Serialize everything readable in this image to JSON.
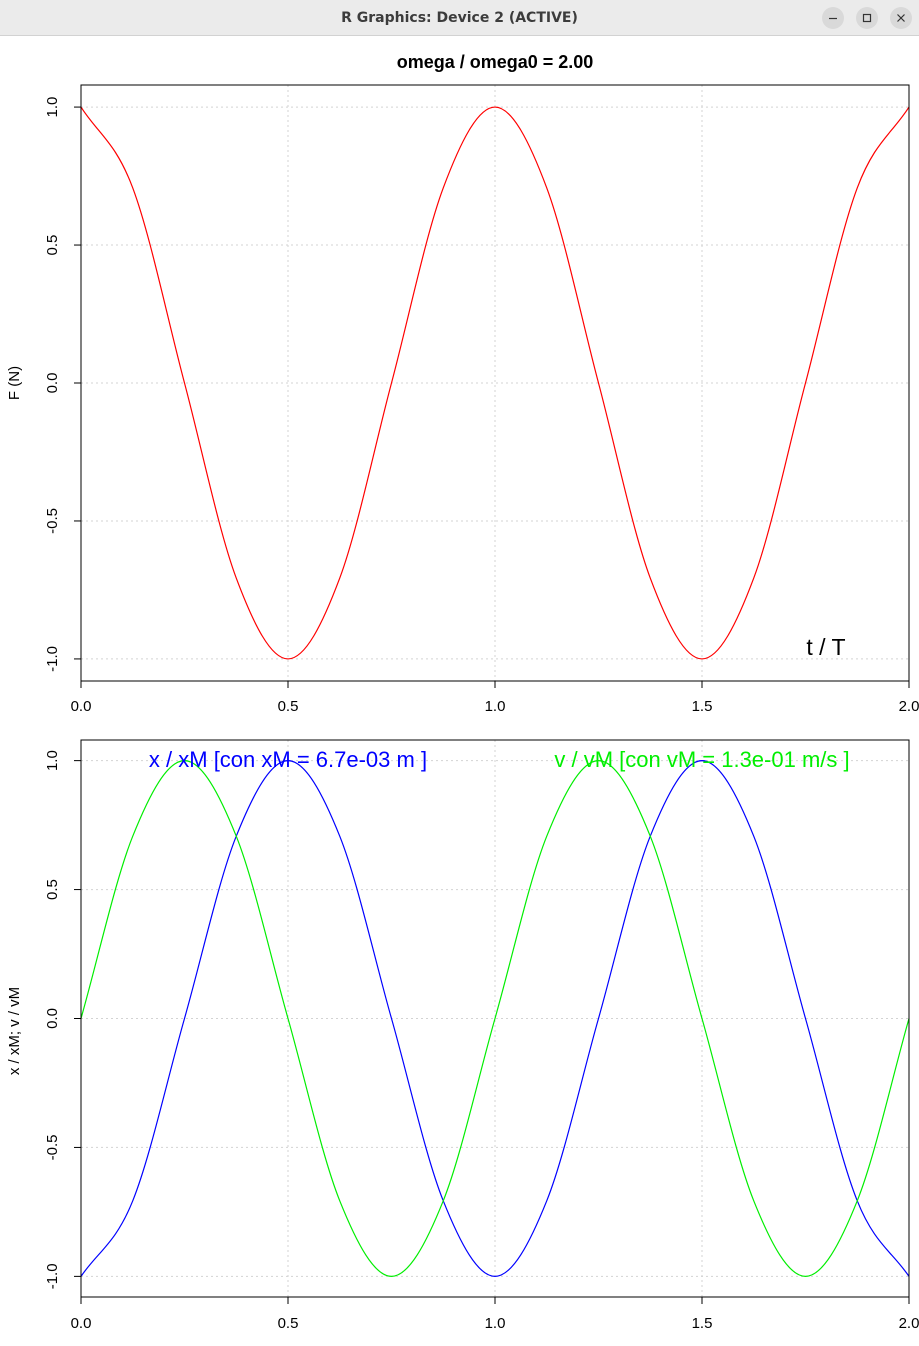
{
  "window": {
    "title": "R Graphics: Device 2 (ACTIVE)",
    "buttons": [
      "minimize",
      "maximize",
      "close"
    ]
  },
  "colors": {
    "force": "#ff0000",
    "position": "#0000ff",
    "velocity": "#00ee00",
    "grid": "#d3d3d3",
    "axis": "#000000"
  },
  "chart_data": [
    {
      "type": "line",
      "title": "omega / omega0  =  2.00",
      "ylabel": "F (N)",
      "annotation": "t / T",
      "xlim": [
        0,
        2
      ],
      "ylim": [
        -1.08,
        1.08
      ],
      "x_ticks": [
        "0.0",
        "0.5",
        "1.0",
        "1.5",
        "2.0"
      ],
      "y_ticks": [
        "-1.0",
        "-0.5",
        "0.0",
        "0.5",
        "1.0"
      ],
      "grid": true,
      "series": [
        {
          "color": "#ff0000",
          "x": [
            0,
            0.125,
            0.25,
            0.375,
            0.5,
            0.625,
            0.75,
            0.875,
            1.0,
            1.125,
            1.25,
            1.375,
            1.5,
            1.625,
            1.75,
            1.875,
            2.0
          ],
          "y": [
            1.0,
            0.707,
            0.0,
            -0.707,
            -1.0,
            -0.707,
            0.0,
            0.707,
            1.0,
            0.707,
            0.0,
            -0.707,
            -1.0,
            -0.707,
            0.0,
            0.707,
            1.0
          ]
        }
      ]
    },
    {
      "type": "line",
      "ylabel": "x / xM;  v / vM",
      "xlim": [
        0,
        2
      ],
      "ylim": [
        -1.08,
        1.08
      ],
      "x_ticks": [
        "0.0",
        "0.5",
        "1.0",
        "1.5",
        "2.0"
      ],
      "y_ticks": [
        "-1.0",
        "-0.5",
        "0.0",
        "0.5",
        "1.0"
      ],
      "grid": true,
      "legend_texts": [
        {
          "text": "x / xM  [con  xM = 6.7e-03 m ]",
          "color": "#0000ff"
        },
        {
          "text": "v / vM  [con  vM = 1.3e-01 m/s ]",
          "color": "#00ee00"
        }
      ],
      "series": [
        {
          "color": "#0000ff",
          "x": [
            0,
            0.125,
            0.25,
            0.375,
            0.5,
            0.625,
            0.75,
            0.875,
            1.0,
            1.125,
            1.25,
            1.375,
            1.5,
            1.625,
            1.75,
            1.875,
            2.0
          ],
          "y": [
            -1.0,
            -0.707,
            0.0,
            0.707,
            1.0,
            0.707,
            0.0,
            -0.707,
            -1.0,
            -0.707,
            0.0,
            0.707,
            1.0,
            0.707,
            0.0,
            -0.707,
            -1.0
          ]
        },
        {
          "color": "#00ee00",
          "x": [
            0,
            0.125,
            0.25,
            0.375,
            0.5,
            0.625,
            0.75,
            0.875,
            1.0,
            1.125,
            1.25,
            1.375,
            1.5,
            1.625,
            1.75,
            1.875,
            2.0
          ],
          "y": [
            0.0,
            0.707,
            1.0,
            0.707,
            0.0,
            -0.707,
            -1.0,
            -0.707,
            0.0,
            0.707,
            1.0,
            0.707,
            0.0,
            -0.707,
            -1.0,
            -0.707,
            0.0
          ]
        }
      ]
    }
  ]
}
